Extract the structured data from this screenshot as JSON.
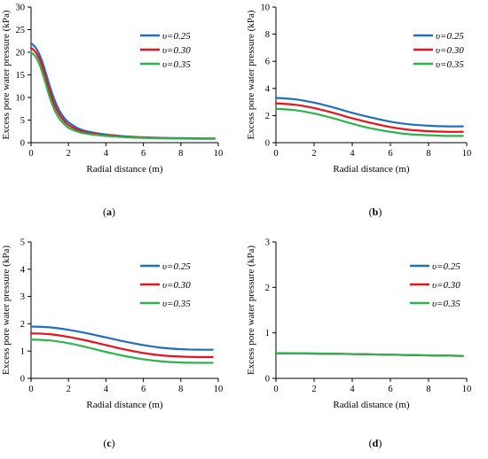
{
  "chart_data": [
    {
      "type": "line",
      "panel_label": "a",
      "xlabel": "Radial distance (m)",
      "ylabel": "Excess pore water pressure (kPa)",
      "xlim": [
        0,
        10
      ],
      "ylim": [
        0,
        30
      ],
      "x_ticks": [
        "0",
        "2",
        "4",
        "6",
        "8",
        "10"
      ],
      "y_ticks": [
        "0",
        "5",
        "10",
        "15",
        "20",
        "25",
        "30"
      ],
      "grid": false,
      "legend_position": "top-right",
      "series": [
        {
          "name": "υ=0.25",
          "color": "#1f6fbd",
          "x": [
            0,
            0.25,
            0.5,
            0.75,
            1.0,
            1.25,
            1.5,
            1.75,
            2.0,
            2.5,
            3.0,
            3.5,
            4.0,
            5.0,
            6.0,
            7.0,
            8.0,
            9.0,
            9.8
          ],
          "y": [
            22.0,
            21.0,
            19.0,
            16.0,
            12.5,
            9.5,
            7.2,
            5.6,
            4.5,
            3.2,
            2.5,
            2.1,
            1.8,
            1.4,
            1.2,
            1.05,
            1.0,
            0.95,
            0.9
          ]
        },
        {
          "name": "υ=0.30",
          "color": "#e3141c",
          "x": [
            0,
            0.25,
            0.5,
            0.75,
            1.0,
            1.25,
            1.5,
            1.75,
            2.0,
            2.5,
            3.0,
            3.5,
            4.0,
            5.0,
            6.0,
            7.0,
            8.0,
            9.0,
            9.8
          ],
          "y": [
            21.0,
            20.0,
            18.0,
            14.8,
            11.3,
            8.4,
            6.3,
            4.9,
            3.9,
            2.8,
            2.2,
            1.9,
            1.65,
            1.3,
            1.1,
            1.0,
            0.95,
            0.9,
            0.9
          ]
        },
        {
          "name": "υ=0.35",
          "color": "#2db34a",
          "x": [
            0,
            0.25,
            0.5,
            0.75,
            1.0,
            1.25,
            1.5,
            1.75,
            2.0,
            2.5,
            3.0,
            3.5,
            4.0,
            5.0,
            6.0,
            7.0,
            8.0,
            9.0,
            9.8
          ],
          "y": [
            20.0,
            19.0,
            16.8,
            13.5,
            10.0,
            7.3,
            5.4,
            4.2,
            3.3,
            2.4,
            1.95,
            1.7,
            1.5,
            1.2,
            1.05,
            0.95,
            0.9,
            0.85,
            0.85
          ]
        }
      ]
    },
    {
      "type": "line",
      "panel_label": "b",
      "xlabel": "Radial distance (m)",
      "ylabel": "Excess pore water pressure (kPa)",
      "xlim": [
        0,
        10
      ],
      "ylim": [
        0,
        10
      ],
      "x_ticks": [
        "0",
        "2",
        "4",
        "6",
        "8",
        "10"
      ],
      "y_ticks": [
        "0",
        "2",
        "4",
        "6",
        "8",
        "10"
      ],
      "grid": false,
      "legend_position": "top-right",
      "series": [
        {
          "name": "υ=0.25",
          "color": "#1f6fbd",
          "x": [
            0,
            1,
            2,
            3,
            4,
            5,
            6,
            7,
            8,
            9,
            9.8
          ],
          "y": [
            3.3,
            3.2,
            2.95,
            2.6,
            2.2,
            1.85,
            1.55,
            1.35,
            1.25,
            1.2,
            1.2
          ]
        },
        {
          "name": "υ=0.30",
          "color": "#e3141c",
          "x": [
            0,
            1,
            2,
            3,
            4,
            5,
            6,
            7,
            8,
            9,
            9.8
          ],
          "y": [
            2.9,
            2.8,
            2.55,
            2.2,
            1.8,
            1.45,
            1.15,
            0.95,
            0.85,
            0.8,
            0.8
          ]
        },
        {
          "name": "υ=0.35",
          "color": "#2db34a",
          "x": [
            0,
            1,
            2,
            3,
            4,
            5,
            6,
            7,
            8,
            9,
            9.8
          ],
          "y": [
            2.5,
            2.4,
            2.15,
            1.8,
            1.4,
            1.05,
            0.8,
            0.62,
            0.55,
            0.5,
            0.5
          ]
        }
      ]
    },
    {
      "type": "line",
      "panel_label": "c",
      "xlabel": "Radial distance (m)",
      "ylabel": "Excess pore water pressure (kPa)",
      "xlim": [
        0,
        10
      ],
      "ylim": [
        0,
        5
      ],
      "x_ticks": [
        "0",
        "2",
        "4",
        "6",
        "8",
        "10"
      ],
      "y_ticks": [
        "0",
        "1",
        "2",
        "3",
        "4",
        "5"
      ],
      "grid": false,
      "legend_position": "top-right",
      "series": [
        {
          "name": "υ=0.25",
          "color": "#1f6fbd",
          "x": [
            0,
            1,
            2,
            3,
            4,
            5,
            6,
            7,
            8,
            9,
            9.7
          ],
          "y": [
            1.9,
            1.87,
            1.78,
            1.65,
            1.5,
            1.35,
            1.22,
            1.12,
            1.07,
            1.05,
            1.05
          ]
        },
        {
          "name": "υ=0.30",
          "color": "#e3141c",
          "x": [
            0,
            1,
            2,
            3,
            4,
            5,
            6,
            7,
            8,
            9,
            9.7
          ],
          "y": [
            1.65,
            1.62,
            1.52,
            1.38,
            1.22,
            1.06,
            0.93,
            0.84,
            0.8,
            0.78,
            0.78
          ]
        },
        {
          "name": "υ=0.35",
          "color": "#2db34a",
          "x": [
            0,
            1,
            2,
            3,
            4,
            5,
            6,
            7,
            8,
            9,
            9.7
          ],
          "y": [
            1.42,
            1.39,
            1.29,
            1.14,
            0.97,
            0.82,
            0.7,
            0.62,
            0.58,
            0.57,
            0.57
          ]
        }
      ]
    },
    {
      "type": "line",
      "panel_label": "d",
      "xlabel": "Radial distance (m)",
      "ylabel": "Excess pore water pressure (kPa)",
      "xlim": [
        0,
        10
      ],
      "ylim": [
        0,
        3
      ],
      "x_ticks": [
        "0",
        "2",
        "4",
        "6",
        "8",
        "10"
      ],
      "y_ticks": [
        "0",
        "1",
        "2",
        "3"
      ],
      "grid": false,
      "legend_position": "top-right",
      "series": [
        {
          "name": "υ=0.25",
          "color": "#1f6fbd",
          "x": [
            0,
            2,
            4,
            6,
            8,
            9.8
          ],
          "y": [
            0.55,
            0.545,
            0.535,
            0.52,
            0.505,
            0.495
          ]
        },
        {
          "name": "υ=0.30",
          "color": "#e3141c",
          "x": [
            0,
            2,
            4,
            6,
            8,
            9.8
          ],
          "y": [
            0.55,
            0.545,
            0.535,
            0.52,
            0.505,
            0.495
          ]
        },
        {
          "name": "υ=0.35",
          "color": "#2db34a",
          "x": [
            0,
            2,
            4,
            6,
            8,
            9.8
          ],
          "y": [
            0.55,
            0.545,
            0.535,
            0.52,
            0.505,
            0.495
          ]
        }
      ]
    }
  ]
}
